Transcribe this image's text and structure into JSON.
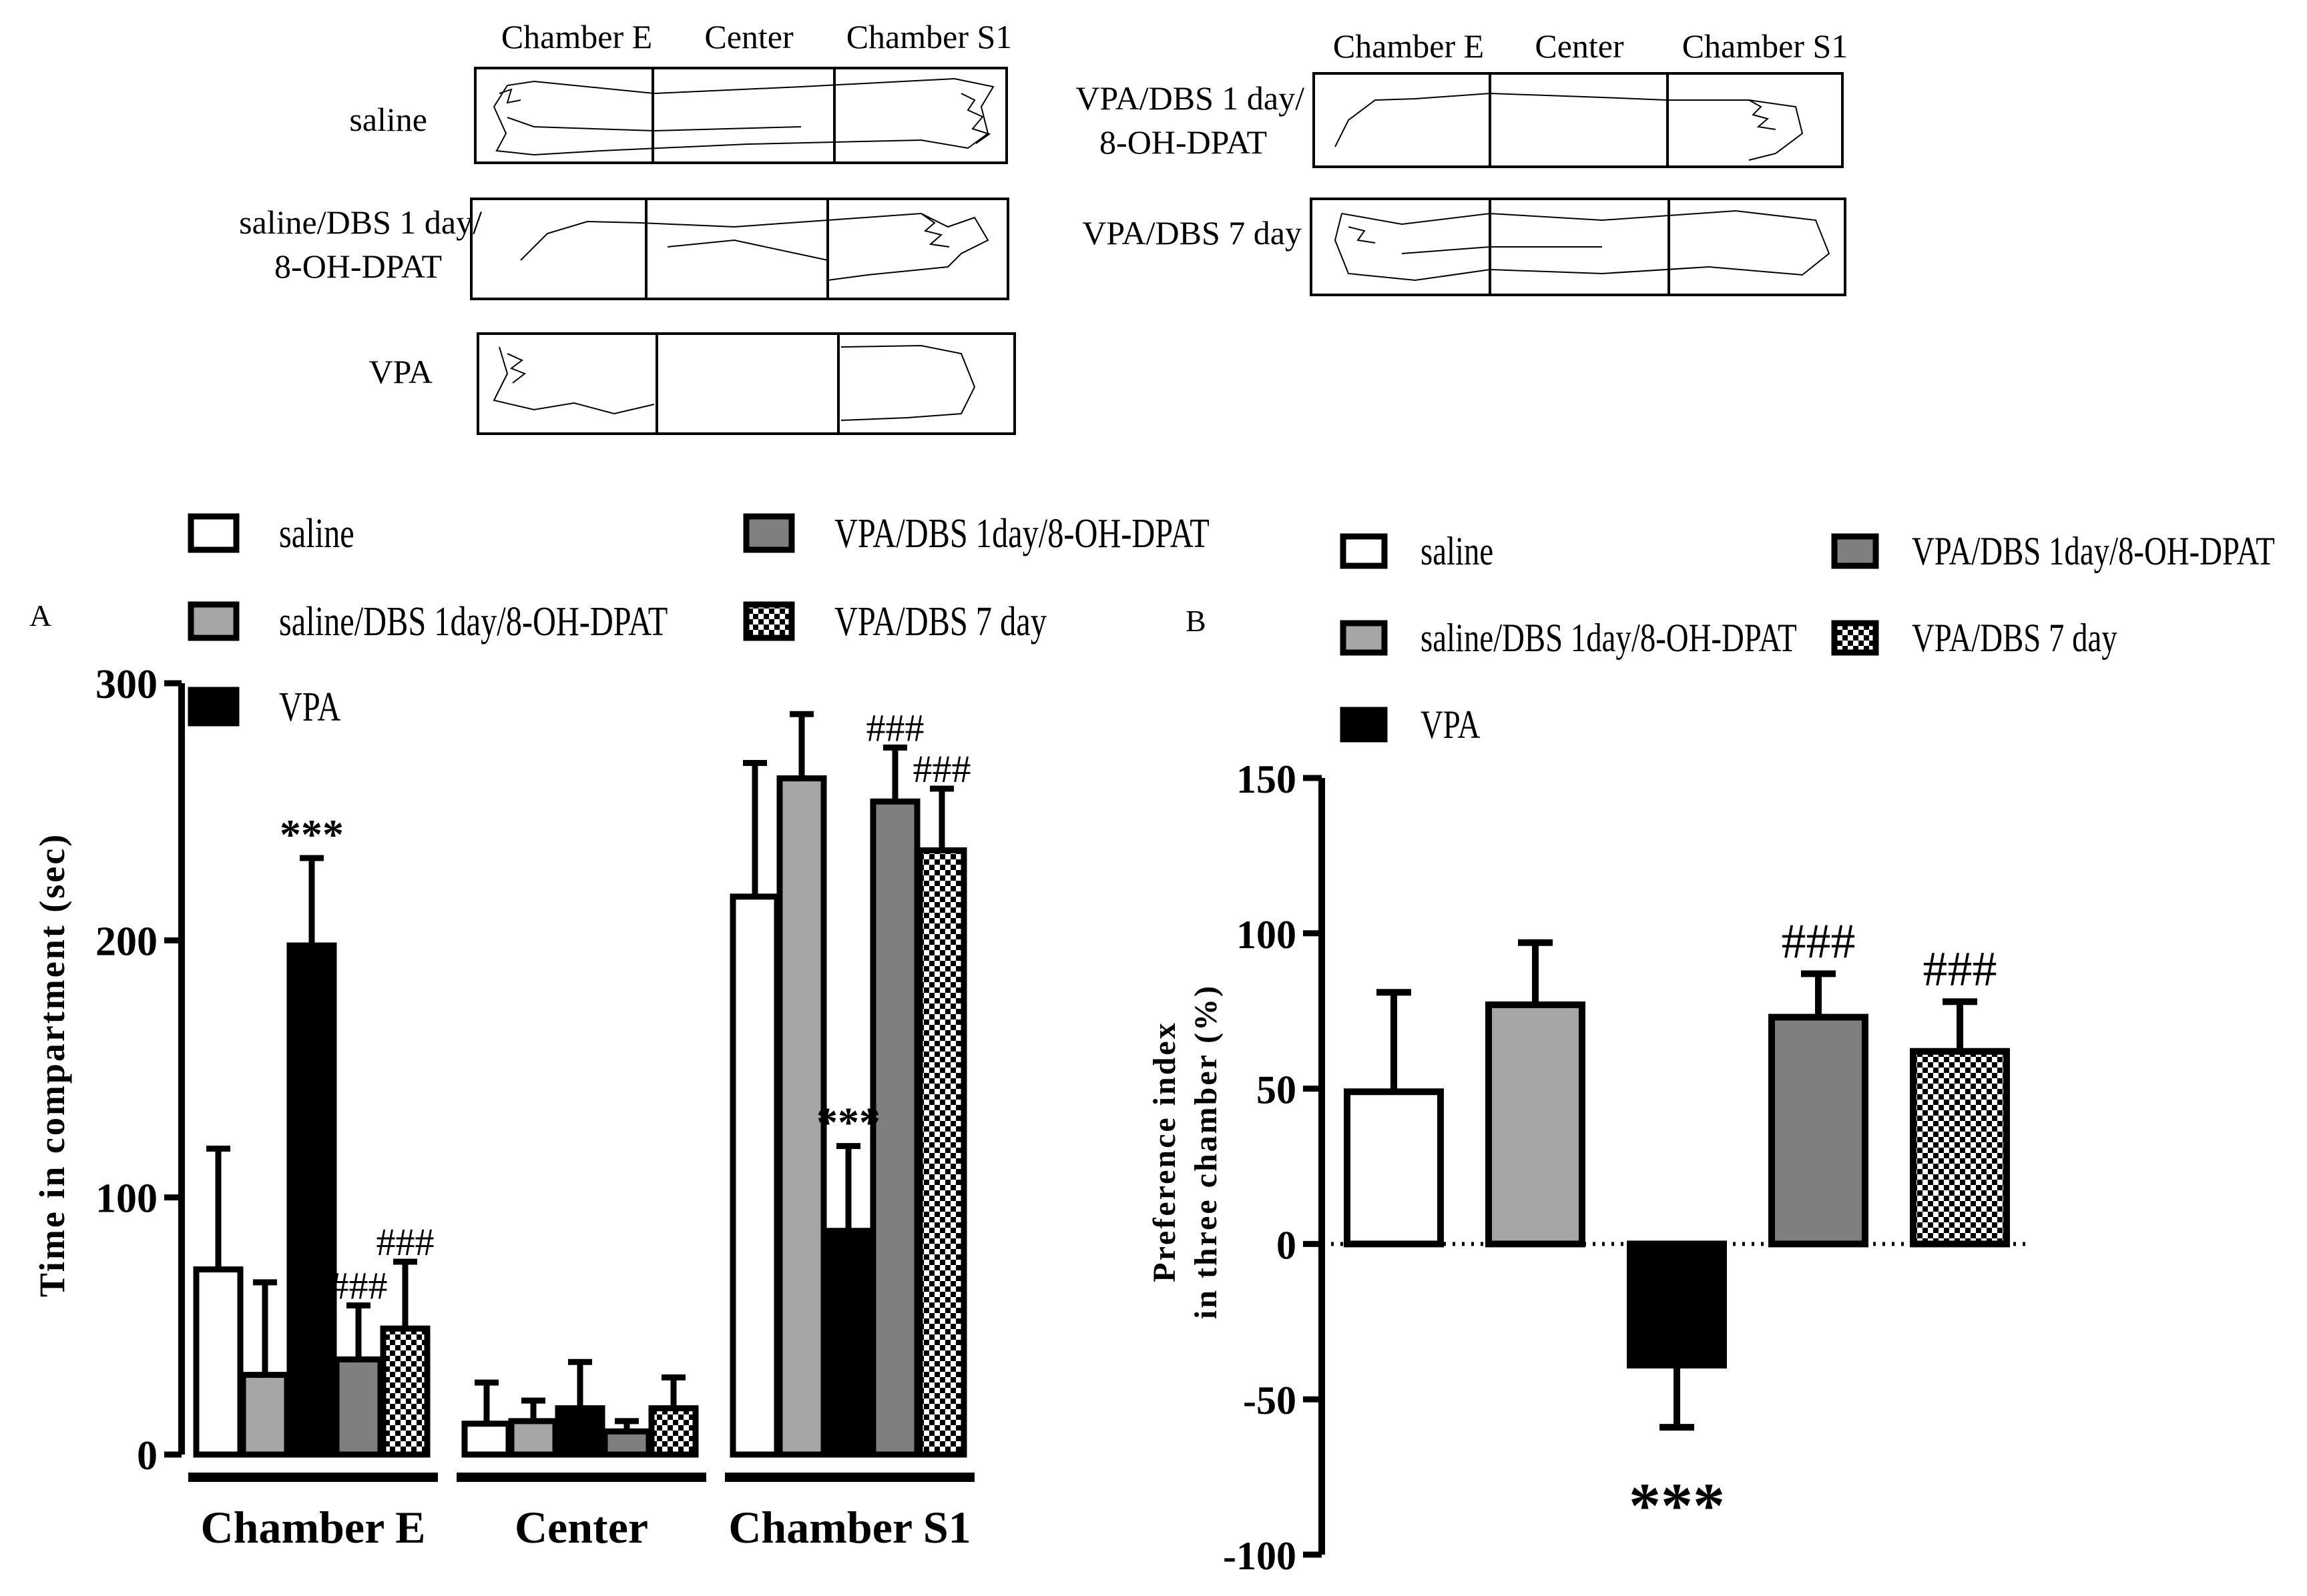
{
  "colors": {
    "saline": "#ffffff",
    "saline_dbs": "#a6a6a6",
    "vpa": "#000000",
    "vpa_dbs1": "#7f7f7f",
    "vpa_dbs7": "checker",
    "outline": "#000000"
  },
  "tracks": {
    "left": {
      "headers": [
        "Chamber E",
        "Center",
        "Chamber S1"
      ],
      "rows": [
        {
          "label": [
            "saline"
          ]
        },
        {
          "label": [
            "saline/DBS 1 day/",
            "8-OH-DPAT"
          ]
        },
        {
          "label": [
            "VPA"
          ]
        }
      ]
    },
    "right": {
      "headers": [
        "Chamber E",
        "Center",
        "Chamber S1"
      ],
      "rows": [
        {
          "label": [
            "VPA/DBS 1 day/",
            "8-OH-DPAT"
          ]
        },
        {
          "label": [
            "VPA/DBS 7 day"
          ]
        }
      ]
    }
  },
  "panel_a": {
    "letter": "A",
    "legend": [
      {
        "name": "saline",
        "fill": "white"
      },
      {
        "name": "saline/DBS 1day/8-OH-DPAT",
        "fill": "lightgray"
      },
      {
        "name": "VPA",
        "fill": "black"
      },
      {
        "name": "VPA/DBS 1day/8-OH-DPAT",
        "fill": "gray"
      },
      {
        "name": "VPA/DBS 7 day",
        "fill": "checker"
      }
    ]
  },
  "panel_b": {
    "letter": "B",
    "legend": [
      {
        "name": "saline",
        "fill": "white"
      },
      {
        "name": "saline/DBS 1day/8-OH-DPAT",
        "fill": "lightgray"
      },
      {
        "name": "VPA",
        "fill": "black"
      },
      {
        "name": "VPA/DBS 1day/8-OH-DPAT",
        "fill": "gray"
      },
      {
        "name": "VPA/DBS 7 day",
        "fill": "checker"
      }
    ]
  },
  "chart_data": [
    {
      "type": "bar",
      "ylabel": "Time in compartment (sec)",
      "xlabel": "",
      "ylim": [
        0,
        300
      ],
      "yticks": [
        "0",
        "100",
        "200",
        "300"
      ],
      "categories": [
        "Chamber E",
        "Center",
        "Chamber S1"
      ],
      "grid": false,
      "legend_position": "top",
      "series": [
        {
          "name": "saline",
          "fill": "white",
          "values": [
            72,
            12,
            217
          ],
          "errors": [
            47,
            16,
            52
          ]
        },
        {
          "name": "saline/DBS 1day/8-OH-DPAT",
          "fill": "lightgray",
          "values": [
            31,
            13,
            263
          ],
          "errors": [
            36,
            8,
            25
          ]
        },
        {
          "name": "VPA",
          "fill": "black",
          "values": [
            198,
            18,
            87
          ],
          "errors": [
            34,
            18,
            33
          ]
        },
        {
          "name": "VPA/DBS 1day/8-OH-DPAT",
          "fill": "gray",
          "values": [
            37,
            9,
            254
          ],
          "errors": [
            21,
            4,
            21
          ]
        },
        {
          "name": "VPA/DBS 7 day",
          "fill": "checker",
          "values": [
            49,
            18,
            235
          ],
          "errors": [
            26,
            12,
            24
          ]
        }
      ],
      "annotations": [
        {
          "category": 0,
          "series": 2,
          "text": "***"
        },
        {
          "category": 0,
          "series": 3,
          "text": "###"
        },
        {
          "category": 0,
          "series": 4,
          "text": "###"
        },
        {
          "category": 2,
          "series": 2,
          "text": "***"
        },
        {
          "category": 2,
          "series": 3,
          "text": "###"
        },
        {
          "category": 2,
          "series": 4,
          "text": "###"
        }
      ]
    },
    {
      "type": "bar",
      "ylabel": [
        "Preference index",
        "in three chamber (%)"
      ],
      "xlabel": "",
      "ylim": [
        -100,
        150
      ],
      "yticks": [
        "-100",
        "-50",
        "0",
        "50",
        "100",
        "150"
      ],
      "grid": false,
      "legend_position": "top",
      "series": [
        {
          "name": "saline",
          "fill": "white",
          "value": 49,
          "error": 32
        },
        {
          "name": "saline/DBS 1day/8-OH-DPAT",
          "fill": "lightgray",
          "value": 77,
          "error": 20
        },
        {
          "name": "VPA",
          "fill": "black",
          "value": -39,
          "error": 20
        },
        {
          "name": "VPA/DBS 1day/8-OH-DPAT",
          "fill": "gray",
          "value": 73,
          "error": 14
        },
        {
          "name": "VPA/DBS 7 day",
          "fill": "checker",
          "value": 62,
          "error": 16
        }
      ],
      "annotations": [
        {
          "series": 2,
          "text": "***",
          "position": "below"
        },
        {
          "series": 3,
          "text": "###",
          "position": "above"
        },
        {
          "series": 4,
          "text": "###",
          "position": "above"
        }
      ]
    }
  ]
}
